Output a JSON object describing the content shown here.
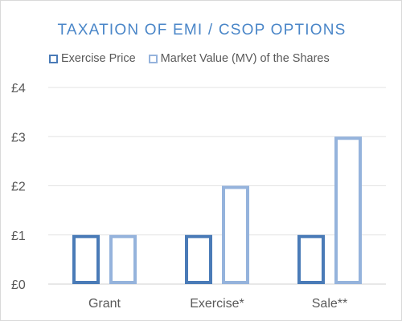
{
  "chart_data": {
    "type": "bar",
    "title": "TAXATION OF EMI / CSOP OPTIONS",
    "categories": [
      "Grant",
      "Exercise*",
      "Sale**"
    ],
    "series": [
      {
        "name": "Exercise Price",
        "values": [
          1,
          1,
          1
        ],
        "color": "#4a7bb7"
      },
      {
        "name": "Market Value (MV) of the Shares",
        "values": [
          1,
          2,
          3
        ],
        "color": "#95b3dc"
      }
    ],
    "y_ticks": [
      "£0",
      "£1",
      "£2",
      "£3",
      "£4"
    ],
    "ylim": [
      0,
      4
    ],
    "bar_style": "outline",
    "grid": "horizontal",
    "legend_position": "top"
  }
}
